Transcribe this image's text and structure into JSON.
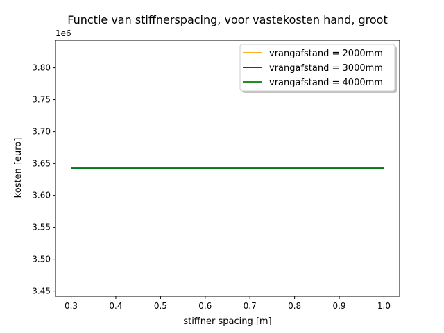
{
  "chart_data": {
    "type": "line",
    "title": "Functie van stiffnerspacing, voor vastekosten hand, groot",
    "xlabel": "stiffner spacing [m]",
    "ylabel": "kosten [euro]",
    "y_multiplier_label": "1e6",
    "x": [
      0.3,
      1.0
    ],
    "xlim": [
      0.265,
      1.035
    ],
    "ylim": [
      3.442,
      3.843
    ],
    "x_ticks": [
      0.3,
      0.4,
      0.5,
      0.6,
      0.7,
      0.8,
      0.9,
      1.0
    ],
    "x_tick_labels": [
      "0.3",
      "0.4",
      "0.5",
      "0.6",
      "0.7",
      "0.8",
      "0.9",
      "1.0"
    ],
    "y_ticks": [
      3.45,
      3.5,
      3.55,
      3.6,
      3.65,
      3.7,
      3.75,
      3.8
    ],
    "y_tick_labels": [
      "3.45",
      "3.50",
      "3.55",
      "3.60",
      "3.65",
      "3.70",
      "3.75",
      "3.80"
    ],
    "grid": false,
    "legend_position": "top-right",
    "series": [
      {
        "name": "vrangafstand = 2000mm",
        "color": "#ffa500",
        "values": [
          3.643,
          3.643
        ]
      },
      {
        "name": "vrangafstand = 3000mm",
        "color": "#0000ff",
        "values": [
          3.643,
          3.643
        ]
      },
      {
        "name": "vrangafstand = 4000mm",
        "color": "#008000",
        "values": [
          3.643,
          3.643
        ]
      }
    ]
  }
}
